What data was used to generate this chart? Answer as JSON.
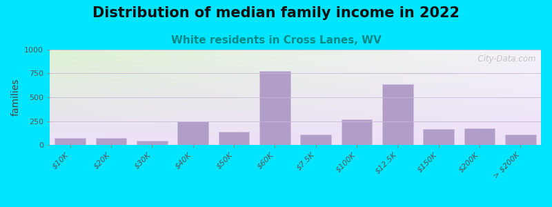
{
  "title": "Distribution of median family income in 2022",
  "subtitle": "White residents in Cross Lanes, WV",
  "ylabel": "families",
  "categories": [
    "$10K",
    "$20K",
    "$30K",
    "$40K",
    "$50K",
    "$60K",
    "$7.5K",
    "$100K",
    "$12.5K",
    "$150K",
    "$200K",
    "> $200K"
  ],
  "values": [
    75,
    75,
    45,
    250,
    140,
    775,
    110,
    265,
    635,
    165,
    175,
    110
  ],
  "bar_color": "#b09dc8",
  "bar_edge_color": "#d0c0e0",
  "ylim": [
    0,
    1000
  ],
  "yticks": [
    0,
    250,
    500,
    750,
    1000
  ],
  "background_outer": "#00e5ff",
  "bg_top_left": "#ddeedd",
  "bg_top_right": "#f5f0f8",
  "bg_bottom_left": "#e8f5e0",
  "bg_bottom_right": "#ede8f5",
  "title_fontsize": 15,
  "subtitle_fontsize": 11,
  "subtitle_color": "#008888",
  "watermark_text": "  City-Data.com",
  "watermark_color": "#bbbbbb",
  "ylabel_fontsize": 10,
  "tick_fontsize": 8
}
